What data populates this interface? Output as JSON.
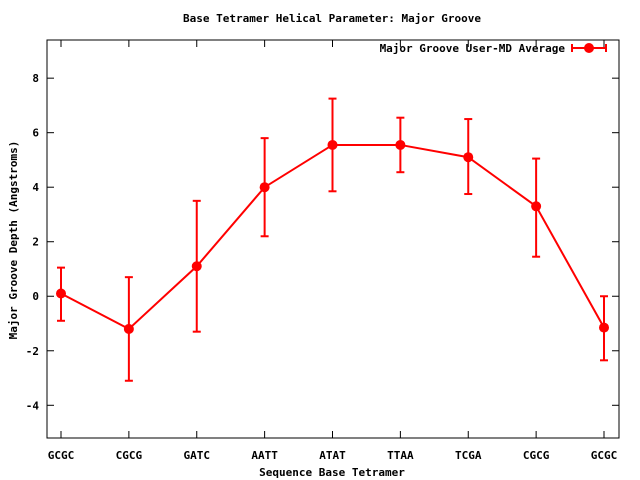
{
  "chart_data": {
    "type": "line",
    "title": "Base Tetramer Helical Parameter: Major Groove",
    "xlabel": "Sequence Base Tetramer",
    "ylabel": "Major Groove Depth (Angstroms)",
    "categories": [
      "GCGC",
      "CGCG",
      "GATC",
      "AATT",
      "ATAT",
      "TTAA",
      "TCGA",
      "CGCG",
      "GCGC"
    ],
    "ylim": [
      -5.2,
      9.4
    ],
    "yticks": [
      -4,
      -2,
      0,
      2,
      4,
      6,
      8
    ],
    "grid": false,
    "legend_position": "top-right",
    "series": [
      {
        "name": "Major Groove User-MD Average",
        "color": "#ff0000",
        "values": [
          0.1,
          -1.2,
          1.1,
          4.0,
          5.55,
          5.55,
          5.1,
          3.3,
          -1.15
        ],
        "error_low": [
          -0.9,
          -3.1,
          -1.3,
          2.2,
          3.85,
          4.55,
          3.75,
          1.45,
          -2.35
        ],
        "error_high": [
          1.05,
          0.7,
          3.5,
          5.8,
          7.25,
          6.55,
          6.5,
          5.05,
          0.0
        ]
      }
    ]
  }
}
